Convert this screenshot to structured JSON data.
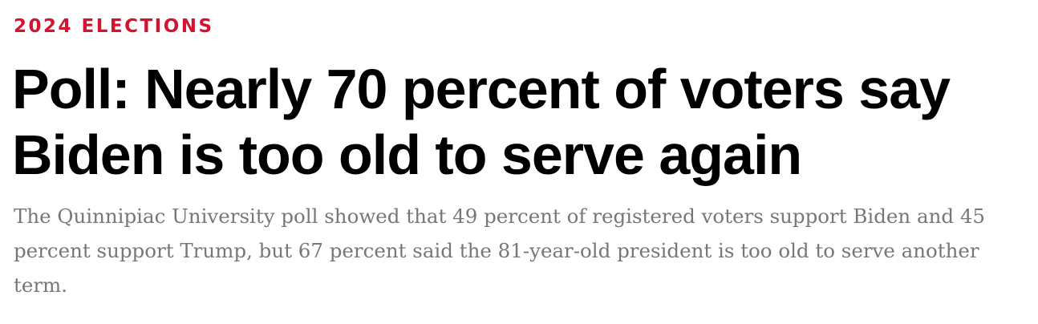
{
  "article": {
    "kicker": "2024 ELECTIONS",
    "headline": "Poll: Nearly 70 percent of voters say Biden is too old to serve again",
    "dek": "The Quinnipiac University poll showed that 49 percent of registered voters support Biden and 45 percent support Trump, but 67 percent said the 81-year-old president is too old to serve another term.",
    "kicker_color": "#d3132f"
  }
}
